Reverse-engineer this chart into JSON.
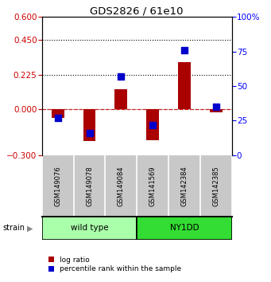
{
  "title": "GDS2826 / 61e10",
  "samples": [
    "GSM149076",
    "GSM149078",
    "GSM149084",
    "GSM141569",
    "GSM142384",
    "GSM142385"
  ],
  "log_ratio": [
    -0.055,
    -0.21,
    0.13,
    -0.2,
    0.305,
    -0.022
  ],
  "percentile": [
    27,
    16,
    57,
    22,
    76,
    35
  ],
  "strain_groups": [
    {
      "label": "wild type",
      "samples": [
        0,
        1,
        2
      ],
      "color": "#aaffaa"
    },
    {
      "label": "NY1DD",
      "samples": [
        3,
        4,
        5
      ],
      "color": "#33dd33"
    }
  ],
  "left_ylim": [
    -0.3,
    0.6
  ],
  "right_ylim": [
    0,
    100
  ],
  "left_yticks": [
    -0.3,
    0,
    0.225,
    0.45,
    0.6
  ],
  "right_yticks": [
    0,
    25,
    50,
    75,
    100
  ],
  "right_yticklabels": [
    "0",
    "25",
    "50",
    "75",
    "100%"
  ],
  "hlines_dotted": [
    0.225,
    0.45
  ],
  "bar_color": "#aa0000",
  "dot_color": "#0000cc",
  "zero_line_color": "#cc2222",
  "bar_width": 0.4,
  "dot_size": 35,
  "label_bg": "#c8c8c8",
  "label_border": "#888888"
}
